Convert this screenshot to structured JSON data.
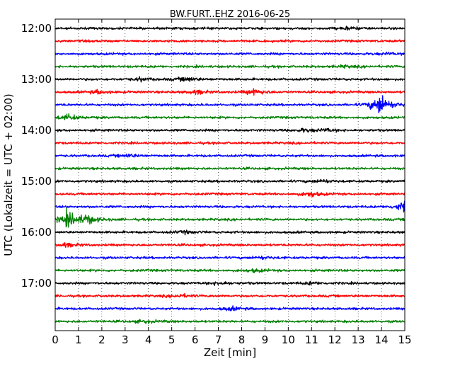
{
  "chart_data": {
    "type": "line",
    "title": "BW.FURT..EHZ 2016-06-25",
    "xlabel": "Zeit  [min]",
    "ylabel": "UTC (Lokalzeit = UTC + 02:00)",
    "xlim": [
      0,
      15
    ],
    "x_ticks": [
      "0",
      "1",
      "2",
      "3",
      "4",
      "5",
      "6",
      "7",
      "8",
      "9",
      "10",
      "11",
      "12",
      "13",
      "14",
      "15"
    ],
    "y_ticks": [
      "12:00",
      "13:00",
      "14:00",
      "15:00",
      "16:00",
      "17:00"
    ],
    "grid": "vertical dotted",
    "trace_interval_min": 15,
    "trace_colors": [
      "#000000",
      "#ff0000",
      "#0000ff",
      "#008000"
    ],
    "traces": [
      {
        "start": "12:00",
        "color": "#000000",
        "events": [
          {
            "t": 12.5,
            "amp": 0.35
          }
        ]
      },
      {
        "start": "12:15",
        "color": "#ff0000",
        "events": []
      },
      {
        "start": "12:30",
        "color": "#0000ff",
        "events": [
          {
            "t": 14.2,
            "amp": 0.3
          }
        ]
      },
      {
        "start": "12:45",
        "color": "#008000",
        "events": [
          {
            "t": 12.4,
            "amp": 0.3
          }
        ]
      },
      {
        "start": "13:00",
        "color": "#000000",
        "events": [
          {
            "t": 3.6,
            "amp": 0.5
          },
          {
            "t": 5.6,
            "amp": 0.7
          }
        ]
      },
      {
        "start": "13:15",
        "color": "#ff0000",
        "events": [
          {
            "t": 1.8,
            "amp": 0.5
          },
          {
            "t": 6.0,
            "amp": 0.6
          },
          {
            "t": 8.5,
            "amp": 0.9
          }
        ]
      },
      {
        "start": "13:30",
        "color": "#0000ff",
        "events": [
          {
            "t": 13.9,
            "amp": 3.3
          }
        ]
      },
      {
        "start": "13:45",
        "color": "#008000",
        "events": [
          {
            "t": 0.5,
            "amp": 0.9
          }
        ]
      },
      {
        "start": "14:00",
        "color": "#000000",
        "events": [
          {
            "t": 10.6,
            "amp": 0.5
          },
          {
            "t": 11.6,
            "amp": 0.4
          }
        ]
      },
      {
        "start": "14:15",
        "color": "#ff0000",
        "events": []
      },
      {
        "start": "14:30",
        "color": "#0000ff",
        "events": [
          {
            "t": 3.1,
            "amp": 0.5
          }
        ]
      },
      {
        "start": "14:45",
        "color": "#008000",
        "events": []
      },
      {
        "start": "15:00",
        "color": "#000000",
        "events": [
          {
            "t": 11.4,
            "amp": 0.5
          }
        ]
      },
      {
        "start": "15:15",
        "color": "#ff0000",
        "events": [
          {
            "t": 10.9,
            "amp": 0.8
          }
        ]
      },
      {
        "start": "15:30",
        "color": "#0000ff",
        "events": [
          {
            "t": 14.9,
            "amp": 1.6
          }
        ]
      },
      {
        "start": "15:45",
        "color": "#008000",
        "events": [
          {
            "t": 0.5,
            "amp": 2.3
          },
          {
            "t": 1.3,
            "amp": 1.3
          }
        ]
      },
      {
        "start": "16:00",
        "color": "#000000",
        "events": [
          {
            "t": 5.5,
            "amp": 0.4
          }
        ]
      },
      {
        "start": "16:15",
        "color": "#ff0000",
        "events": [
          {
            "t": 0.4,
            "amp": 0.6
          }
        ]
      },
      {
        "start": "16:30",
        "color": "#0000ff",
        "events": [
          {
            "t": 8.8,
            "amp": 0.4
          }
        ]
      },
      {
        "start": "16:45",
        "color": "#008000",
        "events": [
          {
            "t": 8.5,
            "amp": 0.4
          }
        ]
      },
      {
        "start": "17:00",
        "color": "#000000",
        "events": [
          {
            "t": 7.0,
            "amp": 0.5
          },
          {
            "t": 10.9,
            "amp": 0.4
          }
        ]
      },
      {
        "start": "17:15",
        "color": "#ff0000",
        "events": [
          {
            "t": 5.3,
            "amp": 0.5
          }
        ]
      },
      {
        "start": "17:30",
        "color": "#0000ff",
        "events": [
          {
            "t": 7.5,
            "amp": 0.5
          }
        ]
      },
      {
        "start": "17:45",
        "color": "#008000",
        "events": [
          {
            "t": 3.8,
            "amp": 0.4
          }
        ]
      }
    ]
  }
}
